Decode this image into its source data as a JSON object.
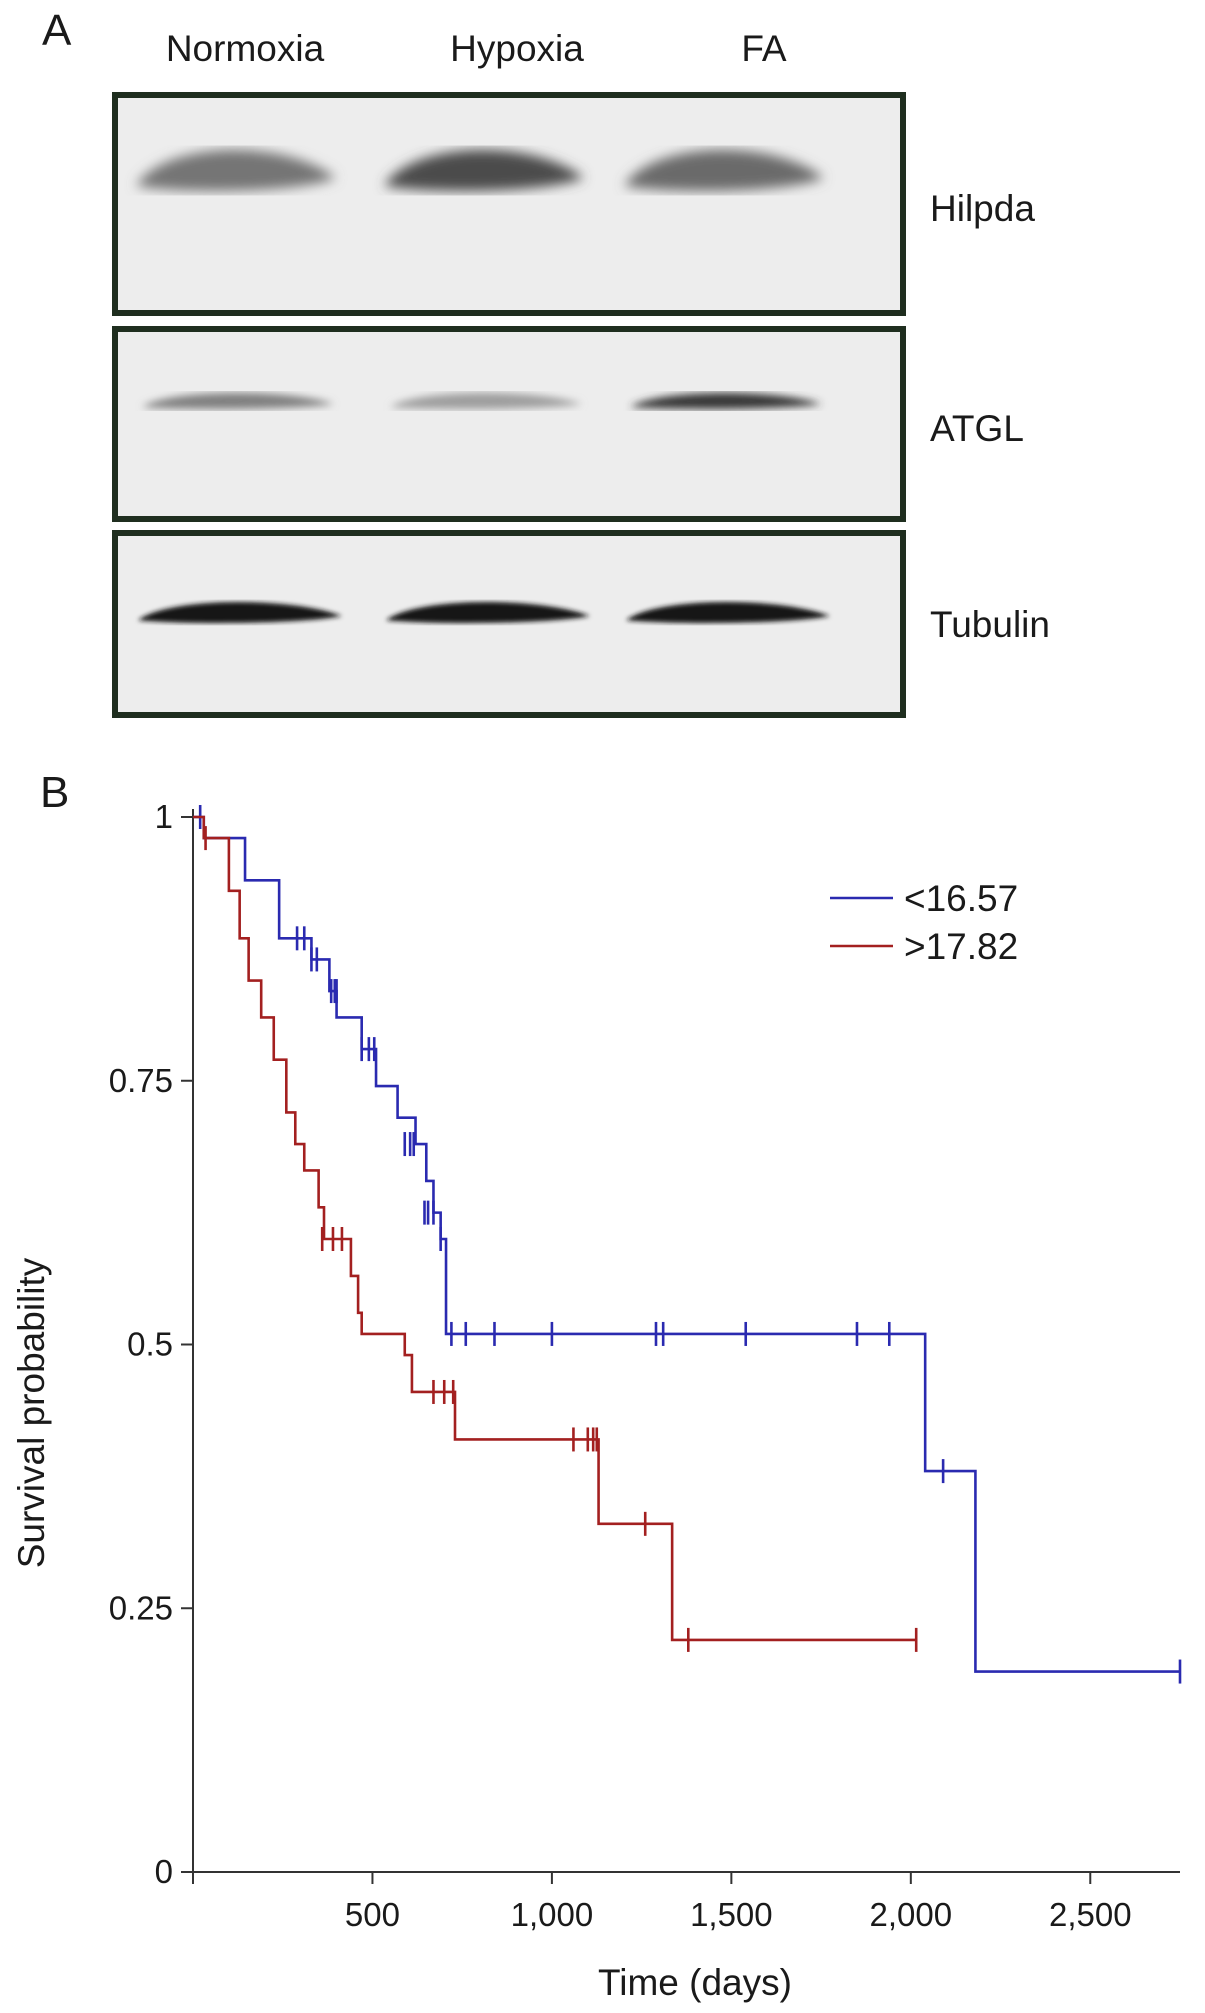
{
  "panel_a": {
    "letter": "A",
    "lanes": [
      "Normoxia",
      "Hypoxia",
      "FA"
    ],
    "proteins": [
      "Hilpda",
      "ATGL",
      "Tubulin"
    ],
    "band_intensity": {
      "Hilpda": [
        0.55,
        0.75,
        0.6
      ],
      "ATGL": [
        0.5,
        0.35,
        0.85
      ],
      "Tubulin": [
        1.0,
        1.0,
        1.0
      ]
    }
  },
  "chart_data": {
    "type": "line",
    "subtype": "kaplan-meier step",
    "panel_letter": "B",
    "xlabel": "Time (days)",
    "ylabel": "Survival probability",
    "xlim": [
      0,
      2750
    ],
    "ylim": [
      0,
      1.0
    ],
    "x_ticks": [
      500,
      1000,
      1500,
      2000,
      2500
    ],
    "x_tick_labels": [
      "500",
      "1,000",
      "1,500",
      "2,000",
      "2,500"
    ],
    "y_ticks": [
      0,
      0.25,
      0.5,
      0.75,
      1.0
    ],
    "y_tick_labels": [
      "0",
      "0.25",
      "0.5",
      "0.75",
      "1"
    ],
    "grid": false,
    "legend_position": "top-right",
    "series": [
      {
        "name": "<16.57",
        "color": "#2a2ab0",
        "steps": [
          [
            0,
            1.0
          ],
          [
            30,
            0.98
          ],
          [
            145,
            0.94
          ],
          [
            240,
            0.885
          ],
          [
            330,
            0.865
          ],
          [
            380,
            0.835
          ],
          [
            400,
            0.81
          ],
          [
            470,
            0.78
          ],
          [
            510,
            0.745
          ],
          [
            570,
            0.715
          ],
          [
            620,
            0.69
          ],
          [
            650,
            0.655
          ],
          [
            670,
            0.625
          ],
          [
            690,
            0.6
          ],
          [
            705,
            0.51
          ],
          [
            2040,
            0.51
          ],
          [
            2040,
            0.38
          ],
          [
            2180,
            0.38
          ],
          [
            2180,
            0.19
          ],
          [
            2750,
            0.19
          ]
        ],
        "censored_x": [
          20,
          290,
          310,
          330,
          345,
          385,
          395,
          400,
          470,
          490,
          505,
          590,
          605,
          615,
          645,
          655,
          670,
          690,
          720,
          760,
          840,
          1000,
          1290,
          1310,
          1540,
          1850,
          1940,
          2090,
          2750
        ],
        "censored_y": [
          1.0,
          0.885,
          0.885,
          0.865,
          0.865,
          0.835,
          0.835,
          0.835,
          0.78,
          0.78,
          0.78,
          0.69,
          0.69,
          0.69,
          0.625,
          0.625,
          0.625,
          0.6,
          0.51,
          0.51,
          0.51,
          0.51,
          0.51,
          0.51,
          0.51,
          0.51,
          0.51,
          0.38,
          0.19
        ]
      },
      {
        "name": ">17.82",
        "color": "#a32020",
        "steps": [
          [
            0,
            1.0
          ],
          [
            30,
            0.98
          ],
          [
            100,
            0.93
          ],
          [
            130,
            0.885
          ],
          [
            155,
            0.845
          ],
          [
            190,
            0.81
          ],
          [
            225,
            0.77
          ],
          [
            260,
            0.72
          ],
          [
            285,
            0.69
          ],
          [
            310,
            0.665
          ],
          [
            350,
            0.63
          ],
          [
            365,
            0.6
          ],
          [
            440,
            0.565
          ],
          [
            460,
            0.53
          ],
          [
            470,
            0.51
          ],
          [
            590,
            0.49
          ],
          [
            610,
            0.455
          ],
          [
            720,
            0.455
          ],
          [
            730,
            0.41
          ],
          [
            1130,
            0.41
          ],
          [
            1130,
            0.33
          ],
          [
            1335,
            0.33
          ],
          [
            1335,
            0.22
          ],
          [
            2015,
            0.22
          ]
        ],
        "censored_x": [
          35,
          360,
          390,
          415,
          670,
          700,
          725,
          1060,
          1100,
          1115,
          1125,
          1260,
          1380,
          2015
        ],
        "censored_y": [
          0.98,
          0.6,
          0.6,
          0.6,
          0.455,
          0.455,
          0.455,
          0.41,
          0.41,
          0.41,
          0.41,
          0.33,
          0.22,
          0.22
        ]
      }
    ]
  }
}
